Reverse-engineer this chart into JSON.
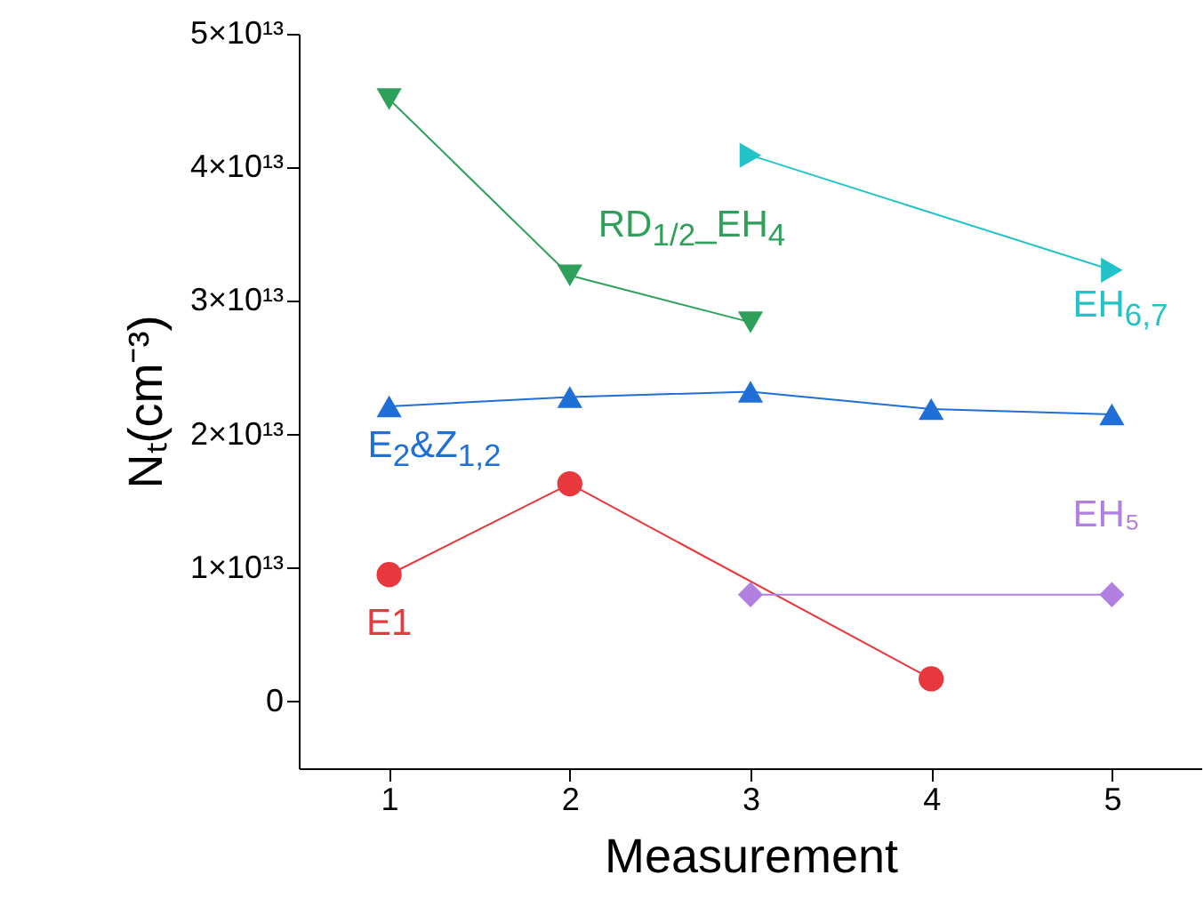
{
  "chart_data": {
    "type": "line",
    "xlabel": "Measurement",
    "ylabel": "Nₜ(cm⁻³)",
    "x": [
      1,
      2,
      3,
      4,
      5
    ],
    "xlim": [
      0.5,
      5.5
    ],
    "xticks": [
      1,
      2,
      3,
      4,
      5
    ],
    "ylim": [
      -5000000000000.0,
      50000000000000.0
    ],
    "yticks": [
      0,
      {
        "value": 10000000000000.0,
        "label": "1×10¹³"
      },
      {
        "value": 20000000000000.0,
        "label": "2×10¹³"
      },
      {
        "value": 30000000000000.0,
        "label": "3×10¹³"
      },
      {
        "value": 40000000000000.0,
        "label": "4×10¹³"
      },
      {
        "value": 50000000000000.0,
        "label": "5×10¹³"
      }
    ],
    "grid": false,
    "series": [
      {
        "name": "E1",
        "color": "#e8383d",
        "marker": "circle",
        "values": [
          9500000000000.0,
          16300000000000.0,
          null,
          1700000000000.0,
          null
        ]
      },
      {
        "name": "E$_{2}$&Z$_{1,2}$",
        "color": "#1f6fd6",
        "marker": "triangle",
        "values": [
          22100000000000.0,
          22800000000000.0,
          23200000000000.0,
          21900000000000.0,
          21500000000000.0
        ]
      },
      {
        "name": "RD$_{1/2}$_EH$_{4}$",
        "color": "#2ea05a",
        "marker": "triangle-down",
        "values": [
          45100000000000.0,
          31900000000000.0,
          28400000000000.0,
          null,
          null
        ]
      },
      {
        "name": "EH$_{6,7}$",
        "color": "#22c3c8",
        "marker": "triangle-right",
        "values": [
          null,
          null,
          40900000000000.0,
          null,
          32300000000000.0
        ]
      },
      {
        "name": "EH₅",
        "color": "#b07fe0",
        "marker": "diamond",
        "values": [
          null,
          null,
          8000000000000.0,
          null,
          8000000000000.0
        ]
      }
    ]
  }
}
